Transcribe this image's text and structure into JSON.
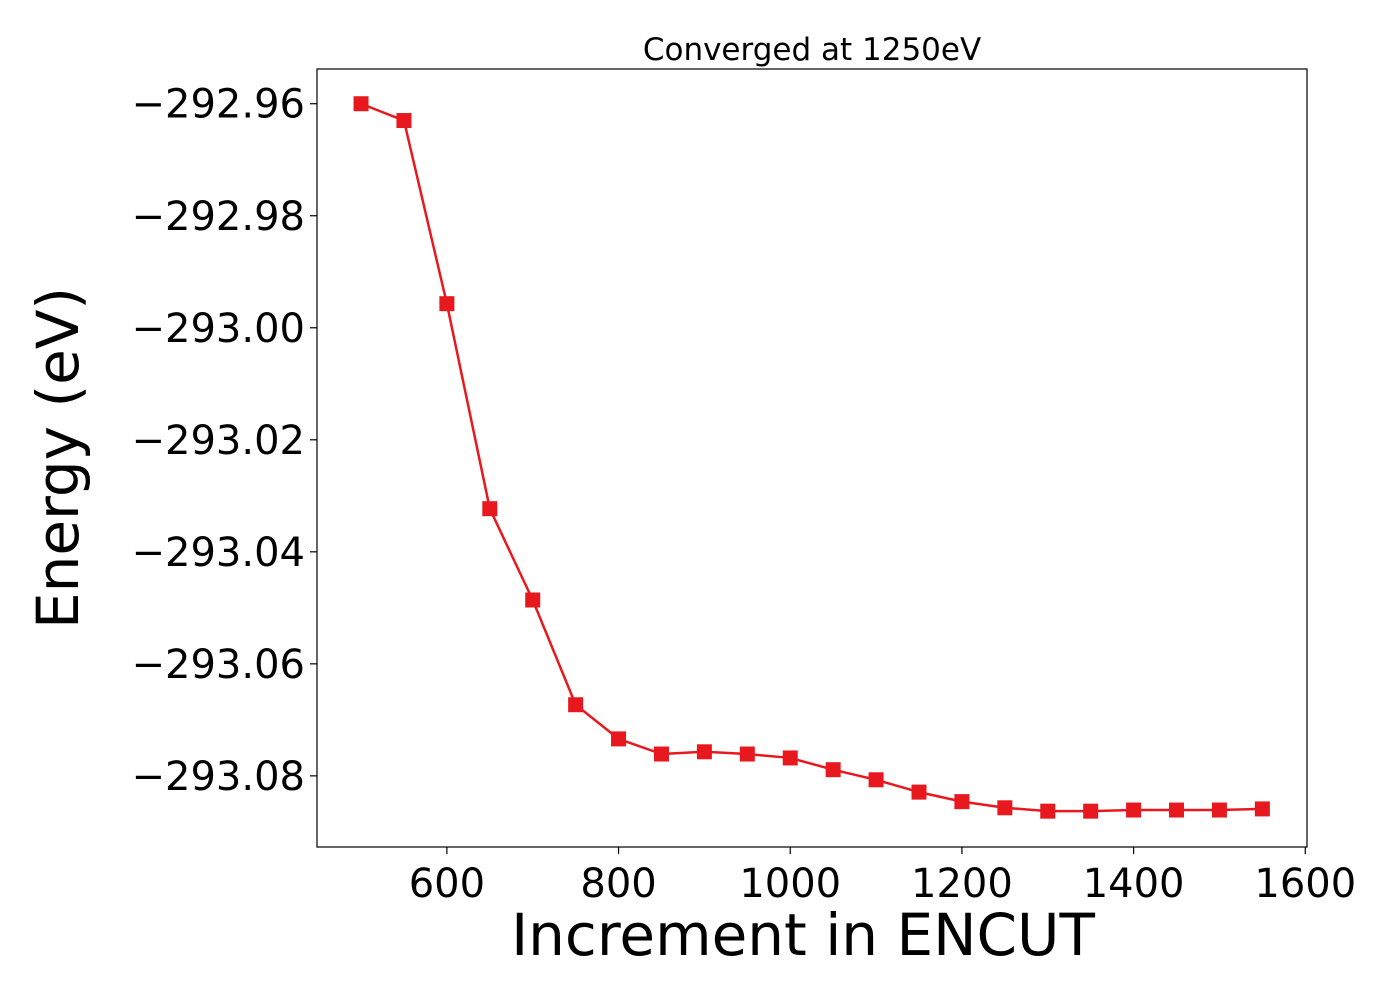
{
  "chart_data": {
    "type": "line",
    "title": "Converged at 1250eV",
    "xlabel": "Increment in ENCUT",
    "ylabel": "Energy (eV)",
    "xlim": [
      448.7,
      1602
    ],
    "ylim": [
      -293.0927,
      -292.9538
    ],
    "grid": false,
    "marker": "square",
    "color": "#e8191e",
    "xticks": [
      600,
      800,
      1000,
      1200,
      1400,
      1600
    ],
    "xtick_labels": [
      "600",
      "800",
      "1000",
      "1200",
      "1400",
      "1600"
    ],
    "yticks": [
      -292.96,
      -292.98,
      -293.0,
      -293.02,
      -293.04,
      -293.06,
      -293.08
    ],
    "ytick_labels": [
      "−292.96",
      "−292.98",
      "−293.00",
      "−293.02",
      "−293.04",
      "−293.06",
      "−293.08"
    ],
    "series": [
      {
        "name": "Energy",
        "x": [
          500,
          550,
          600,
          650,
          700,
          750,
          800,
          850,
          900,
          950,
          1000,
          1050,
          1100,
          1150,
          1200,
          1250,
          1300,
          1350,
          1400,
          1450,
          1500,
          1550
        ],
        "y": [
          -292.96,
          -292.963,
          -292.9957,
          -293.0323,
          -293.0486,
          -293.0673,
          -293.0734,
          -293.0761,
          -293.0757,
          -293.0761,
          -293.0768,
          -293.0789,
          -293.0807,
          -293.0829,
          -293.0846,
          -293.0857,
          -293.0863,
          -293.0863,
          -293.0861,
          -293.0861,
          -293.0861,
          -293.0859
        ]
      }
    ]
  }
}
